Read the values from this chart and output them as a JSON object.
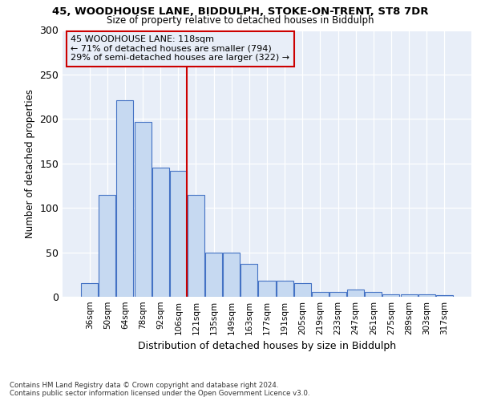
{
  "title1": "45, WOODHOUSE LANE, BIDDULPH, STOKE-ON-TRENT, ST8 7DR",
  "title2": "Size of property relative to detached houses in Biddulph",
  "xlabel": "Distribution of detached houses by size in Biddulph",
  "ylabel": "Number of detached properties",
  "categories": [
    "36sqm",
    "50sqm",
    "64sqm",
    "78sqm",
    "92sqm",
    "106sqm",
    "121sqm",
    "135sqm",
    "149sqm",
    "163sqm",
    "177sqm",
    "191sqm",
    "205sqm",
    "219sqm",
    "233sqm",
    "247sqm",
    "261sqm",
    "275sqm",
    "289sqm",
    "303sqm",
    "317sqm"
  ],
  "values": [
    15,
    115,
    221,
    197,
    145,
    142,
    115,
    50,
    50,
    37,
    18,
    18,
    15,
    5,
    5,
    8,
    5,
    3,
    3,
    3,
    2
  ],
  "bar_color": "#c6d9f1",
  "bar_edge_color": "#4472c4",
  "vline_x": 6.0,
  "vline_color": "#cc0000",
  "annotation_box_edge_color": "#cc0000",
  "annotation_text_line1": "45 WOODHOUSE LANE: 118sqm",
  "annotation_text_line2": "← 71% of detached houses are smaller (794)",
  "annotation_text_line3": "29% of semi-detached houses are larger (322) →",
  "background_color": "#ffffff",
  "plot_bg_color": "#e8eef8",
  "grid_color": "#ffffff",
  "footer_line1": "Contains HM Land Registry data © Crown copyright and database right 2024.",
  "footer_line2": "Contains public sector information licensed under the Open Government Licence v3.0.",
  "ylim": [
    0,
    300
  ],
  "yticks": [
    0,
    50,
    100,
    150,
    200,
    250,
    300
  ]
}
